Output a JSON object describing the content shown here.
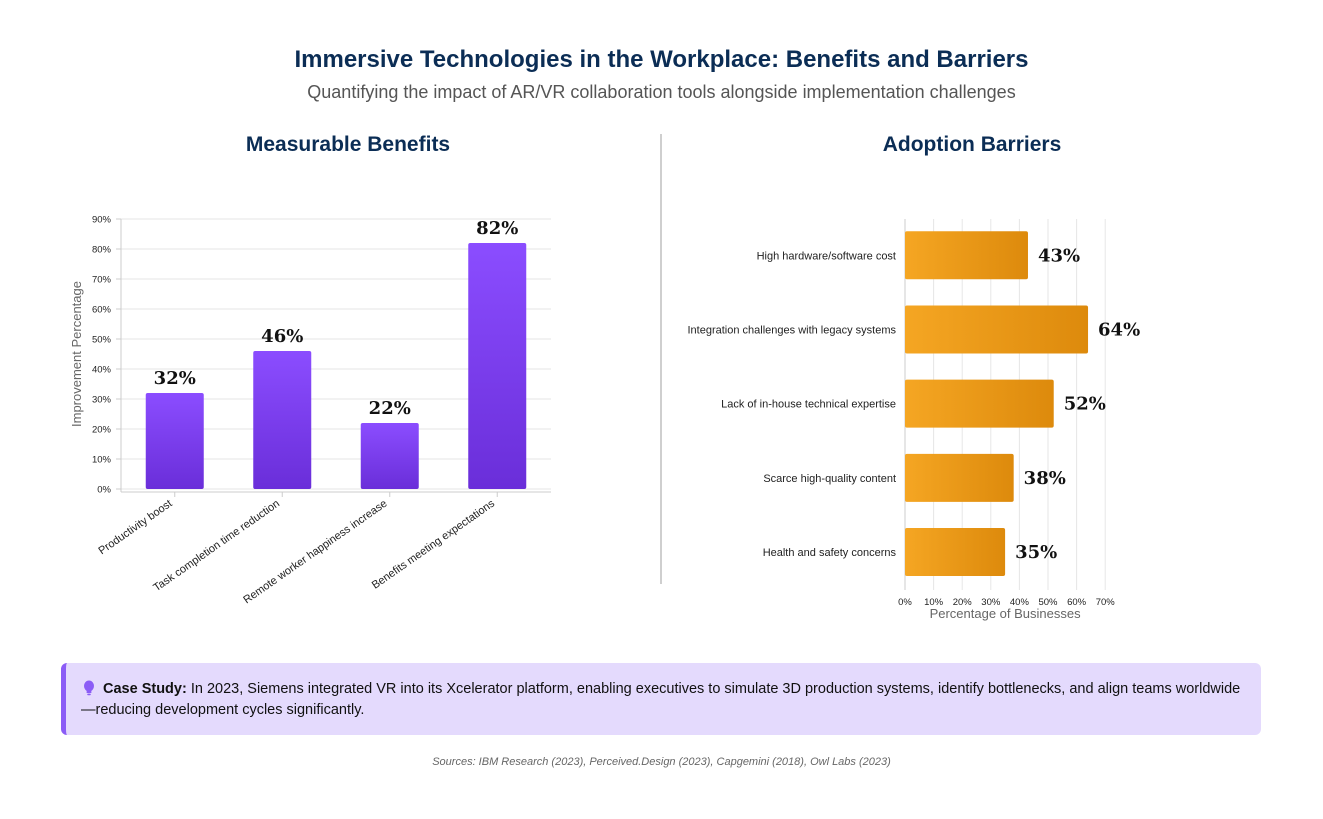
{
  "header": {
    "title": "Immersive Technologies in the Workplace: Benefits and Barriers",
    "subtitle": "Quantifying the impact of AR/VR collaboration tools alongside implementation challenges"
  },
  "chart_data": [
    {
      "type": "bar",
      "title": "Measurable Benefits",
      "categories": [
        "Productivity boost",
        "Task completion time reduction",
        "Remote worker happiness increase",
        "Benefits meeting expectations"
      ],
      "values": [
        32,
        46,
        22,
        82
      ],
      "value_labels": [
        "32%",
        "46%",
        "22%",
        "82%"
      ],
      "ylabel": "Improvement Percentage",
      "ylim": [
        0,
        90
      ],
      "yticks": [
        "0%",
        "10%",
        "20%",
        "30%",
        "40%",
        "50%",
        "60%",
        "70%",
        "80%",
        "90%"
      ],
      "grid": true,
      "color_top": "#8b4dff",
      "color_bottom": "#6a2ed9"
    },
    {
      "type": "bar",
      "orientation": "horizontal",
      "title": "Adoption Barriers",
      "categories": [
        "High hardware/software cost",
        "Integration challenges with legacy systems",
        "Lack of in-house technical expertise",
        "Scarce high-quality content",
        "Health and safety concerns"
      ],
      "values": [
        43,
        64,
        52,
        38,
        35
      ],
      "value_labels": [
        "43%",
        "64%",
        "52%",
        "38%",
        "35%"
      ],
      "xlabel": "Percentage of Businesses",
      "xlim": [
        0,
        70
      ],
      "xticks": [
        "0%",
        "10%",
        "20%",
        "30%",
        "40%",
        "50%",
        "60%",
        "70%"
      ],
      "grid": true,
      "color_left": "#f5a623",
      "color_right": "#dd8a0c"
    }
  ],
  "case_study": {
    "label": "Case Study:",
    "text": "In 2023, Siemens integrated VR into its Xcelerator platform, enabling executives to simulate 3D production systems, identify bottlenecks, and align teams worldwide—reducing development cycles significantly.",
    "icon": "lightbulb-icon"
  },
  "sources": "Sources: IBM Research (2023), Perceived.Design (2023), Capgemini (2018), Owl Labs (2023)"
}
